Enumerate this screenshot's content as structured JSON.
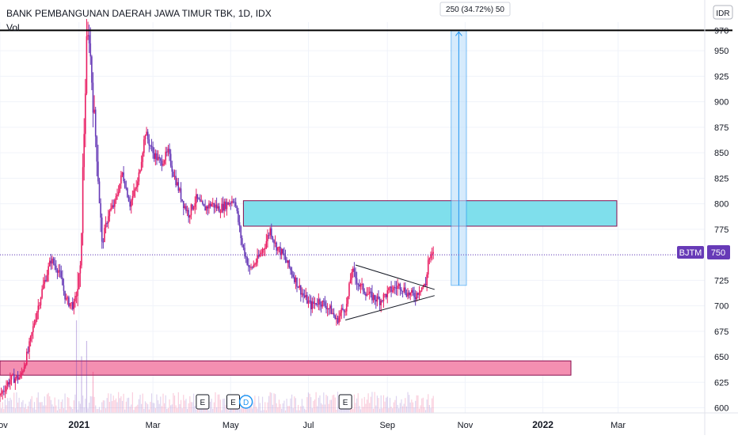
{
  "chart_data": {
    "type": "candlestick",
    "title": "BANK PEMBANGUNAN DAERAH JAWA TIMUR TBK, 1D, IDX",
    "volume_label": "Vol",
    "currency_label": "IDR",
    "symbol": "BJTM",
    "last_price": 750,
    "last_price_label": "750",
    "ylim": [
      595,
      978
    ],
    "y_ticks": [
      600,
      625,
      650,
      675,
      700,
      725,
      750,
      775,
      800,
      825,
      850,
      875,
      900,
      925,
      950,
      970
    ],
    "y_tick_labels": [
      "600",
      "625",
      "650",
      "675",
      "700",
      "725",
      "750",
      "775",
      "800",
      "825",
      "850",
      "875",
      "900",
      "925",
      "950",
      "970"
    ],
    "x_ticks": [
      {
        "label": "Nov",
        "t": 0,
        "bold": false
      },
      {
        "label": "2021",
        "t": 62,
        "bold": true
      },
      {
        "label": "Mar",
        "t": 120,
        "bold": false
      },
      {
        "label": "May",
        "t": 181,
        "bold": false
      },
      {
        "label": "Jul",
        "t": 242,
        "bold": false
      },
      {
        "label": "Sep",
        "t": 304,
        "bold": false
      },
      {
        "label": "Nov",
        "t": 365,
        "bold": false
      },
      {
        "label": "2022",
        "t": 426,
        "bold": true
      },
      {
        "label": "Mar",
        "t": 485,
        "bold": false
      }
    ],
    "t_range": [
      0,
      553
    ],
    "price_path": [
      [
        0,
        612
      ],
      [
        8,
        628
      ],
      [
        16,
        630
      ],
      [
        22,
        655
      ],
      [
        28,
        690
      ],
      [
        34,
        720
      ],
      [
        40,
        745
      ],
      [
        46,
        735
      ],
      [
        52,
        705
      ],
      [
        58,
        700
      ],
      [
        63,
        730
      ],
      [
        65,
        830
      ],
      [
        68,
        955
      ],
      [
        70,
        965
      ],
      [
        73,
        900
      ],
      [
        76,
        850
      ],
      [
        80,
        760
      ],
      [
        85,
        790
      ],
      [
        90,
        800
      ],
      [
        96,
        830
      ],
      [
        102,
        800
      ],
      [
        108,
        820
      ],
      [
        114,
        870
      ],
      [
        120,
        850
      ],
      [
        126,
        840
      ],
      [
        132,
        850
      ],
      [
        136,
        830
      ],
      [
        140,
        815
      ],
      [
        144,
        800
      ],
      [
        148,
        790
      ],
      [
        154,
        805
      ],
      [
        160,
        795
      ],
      [
        166,
        800
      ],
      [
        172,
        795
      ],
      [
        178,
        800
      ],
      [
        184,
        805
      ],
      [
        190,
        760
      ],
      [
        196,
        735
      ],
      [
        202,
        745
      ],
      [
        208,
        760
      ],
      [
        212,
        775
      ],
      [
        216,
        760
      ],
      [
        222,
        750
      ],
      [
        228,
        735
      ],
      [
        234,
        720
      ],
      [
        238,
        710
      ],
      [
        244,
        700
      ],
      [
        250,
        705
      ],
      [
        256,
        700
      ],
      [
        260,
        695
      ],
      [
        264,
        685
      ],
      [
        268,
        695
      ],
      [
        272,
        700
      ],
      [
        276,
        735
      ],
      [
        282,
        720
      ],
      [
        290,
        710
      ],
      [
        298,
        705
      ],
      [
        306,
        715
      ],
      [
        314,
        720
      ],
      [
        320,
        712
      ],
      [
        326,
        710
      ],
      [
        330,
        718
      ],
      [
        334,
        720
      ],
      [
        336,
        745
      ],
      [
        340,
        750
      ]
    ],
    "volume_spikes": [
      [
        60,
        0.9
      ],
      [
        64,
        0.55
      ],
      [
        68,
        0.7
      ],
      [
        73,
        0.4
      ]
    ],
    "rectangles": [
      {
        "t0": 191,
        "t1": 484,
        "y0": 778,
        "y1": 803,
        "fill": "#7fdfec",
        "stroke": "#880e4f"
      },
      {
        "t0": 0,
        "t1": 448,
        "y0": 632,
        "y1": 646,
        "fill": "#f48fb1",
        "stroke": "#880e4f"
      }
    ],
    "triangle": {
      "upper": [
        [
          279,
          740
        ],
        [
          341,
          716
        ]
      ],
      "lower": [
        [
          271,
          686
        ],
        [
          341,
          710
        ]
      ]
    },
    "measure": {
      "t0": 354,
      "t1": 366,
      "y0": 720,
      "y1": 970,
      "label": "250 (34.72%) 50",
      "fill": "#bbdefb",
      "stroke": "#2196f3"
    },
    "top_line_value": 970,
    "events": [
      {
        "t": 159,
        "label": "E"
      },
      {
        "t": 183,
        "label": "E"
      },
      {
        "t": 193,
        "label": "D"
      },
      {
        "t": 271,
        "label": "E"
      }
    ],
    "colors": {
      "up": "#e91e63",
      "down": "#673ab7",
      "badge": "#673ab7",
      "grid": "#f0f3fa",
      "axis": "#131722",
      "dotted": "#673ab7"
    }
  }
}
